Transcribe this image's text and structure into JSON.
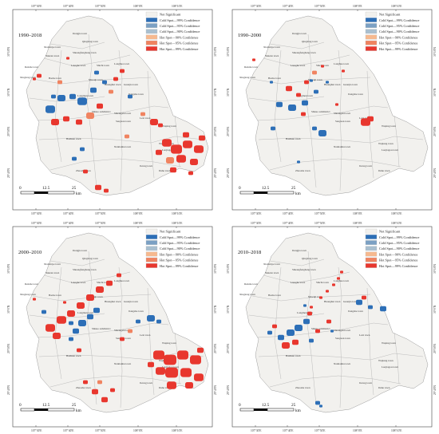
{
  "figure": {
    "legend": [
      {
        "label": "Not Significant",
        "color": "#f2f1ee"
      },
      {
        "label": "Cold Spot—99% Confidence",
        "color": "#2d6fb7"
      },
      {
        "label": "Cold Spot—95% Confidence",
        "color": "#7ba0c4"
      },
      {
        "label": "Cold Spot—90% Confidence",
        "color": "#a9bfcf"
      },
      {
        "label": "Hot Spot—90% Confidence",
        "color": "#f6b98f"
      },
      {
        "label": "Hot Spot—95% Confidence",
        "color": "#f08360"
      },
      {
        "label": "Hot Spot—99% Confidence",
        "color": "#e8372e"
      }
    ],
    "top_coords": [
      "107°30′E",
      "107°40′E",
      "107°50′E",
      "108°0′E",
      "108°10′E"
    ],
    "side_coords": [
      "30°10′N",
      "30°0′N",
      "29°50′N",
      "29°40′N"
    ],
    "scale_labels": [
      "0",
      "12.5",
      "25"
    ],
    "scale_unit": "km",
    "towns": [
      "Dongjia town",
      "Qinglong town",
      "Xianxiaye town",
      "Shuangfenghang town",
      "Yunzan town",
      "Renshe town",
      "Lianghe town",
      "Shichi town",
      "Longhua town",
      "Xinglong town",
      "Baohe town",
      "Mawuji town",
      "Huanghui town",
      "Guanjia town",
      "Jiangshe town",
      "Longmen town",
      "Shisuo subdistrict",
      "Shuangshi town",
      "Sanyuan town",
      "Lexi town",
      "Baiduan town",
      "Nantianhu town",
      "Wujiang town",
      "Luojiagou town",
      "Zhaosha town",
      "Jizong town",
      "Dahe town",
      "Wuping town"
    ],
    "panels": [
      {
        "period": "1990–2018"
      },
      {
        "period": "1990–2000"
      },
      {
        "period": "2000–2010"
      },
      {
        "period": "2010–2018"
      }
    ]
  }
}
